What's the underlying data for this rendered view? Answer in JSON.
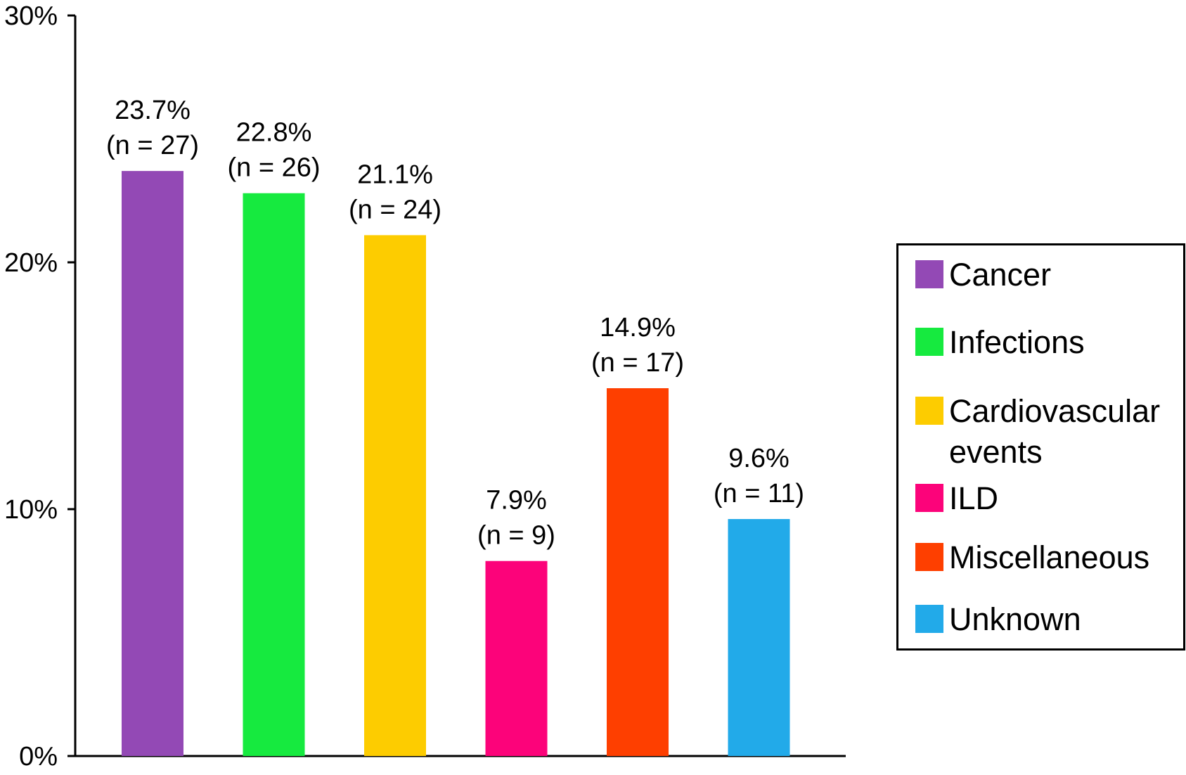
{
  "chart_data": {
    "type": "bar",
    "title": "",
    "xlabel": "",
    "ylabel": "",
    "ylim": [
      0,
      30
    ],
    "grid": false,
    "legend_position": "right",
    "y_ticks": [
      0,
      10,
      20,
      30
    ],
    "y_tick_labels": [
      "0%",
      "10%",
      "20%",
      "30%"
    ],
    "categories": [
      "Cancer",
      "Infections",
      "Cardiovascular events",
      "ILD",
      "Miscellaneous",
      "Unknown"
    ],
    "values": [
      23.7,
      22.8,
      21.1,
      7.9,
      14.9,
      9.6
    ],
    "data_labels": [
      [
        "23.7%",
        "(n = 27)"
      ],
      [
        "22.8%",
        "(n = 26)"
      ],
      [
        "21.1%",
        "(n = 24)"
      ],
      [
        "7.9%",
        "(n = 9)"
      ],
      [
        "14.9%",
        "(n = 17)"
      ],
      [
        "9.6%",
        "(n = 11)"
      ]
    ],
    "colors": [
      "#9349B5",
      "#16EA3F",
      "#FDCC00",
      "#FC037A",
      "#FE3F00",
      "#22AAE9"
    ],
    "legend": [
      {
        "lines": [
          "Cancer"
        ],
        "color": "#9349B5"
      },
      {
        "lines": [
          "Infections"
        ],
        "color": "#16EA3F"
      },
      {
        "lines": [
          "Cardiovascular",
          "events"
        ],
        "color": "#FDCC00"
      },
      {
        "lines": [
          "ILD"
        ],
        "color": "#FC037A"
      },
      {
        "lines": [
          "Miscellaneous"
        ],
        "color": "#FE3F00"
      },
      {
        "lines": [
          "Unknown"
        ],
        "color": "#22AAE9"
      }
    ]
  }
}
